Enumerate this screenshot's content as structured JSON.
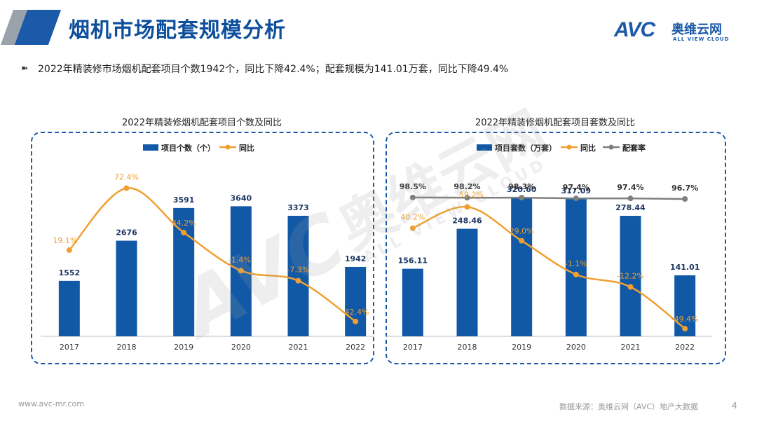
{
  "header": {
    "title": "烟机市场配套规模分析",
    "logo_avc": "AVC",
    "logo_cn": "奥维云网",
    "logo_en": "ALL VIEW CLOUD"
  },
  "summary": {
    "bullet": "➽",
    "text": "2022年精装修市场烟机配套项目个数1942个，同比下降42.4%；配套规模为141.01万套，同比下降49.4%"
  },
  "watermark": {
    "avc": "AVC",
    "cn": "奥维云网",
    "en": "ALL VIEW CLOUD"
  },
  "footer": {
    "site": "www.avc-mr.com",
    "source": "数据来源：奥维云网（AVC）地产大数据",
    "page": "4"
  },
  "colors": {
    "bar": "#1158a7",
    "yoy_line": "#f0a030",
    "rate_line": "#7f7f7f",
    "title": "#0d4f9c"
  },
  "chart_data": [
    {
      "type": "bar",
      "title": "2022年精装修烟机配套项目个数及同比",
      "categories": [
        "2017",
        "2018",
        "2019",
        "2020",
        "2021",
        "2022"
      ],
      "series": [
        {
          "name": "项目个数（个）",
          "type": "bar",
          "values": [
            1552,
            2676,
            3591,
            3640,
            3373,
            1942
          ],
          "labels": [
            "1552",
            "2676",
            "3591",
            "3640",
            "3373",
            "1942"
          ]
        },
        {
          "name": "同比",
          "type": "line",
          "values": [
            19.1,
            72.4,
            34.2,
            1.4,
            -7.3,
            -42.4
          ],
          "labels": [
            "19.1%",
            "72.4%",
            "34.2%",
            "1.4%",
            "-7.3%",
            "-42.4%"
          ]
        }
      ],
      "legend": [
        "项目个数（个）",
        "同比"
      ],
      "bar_ylim": [
        0,
        4000
      ],
      "line_ylim": [
        -60,
        80
      ]
    },
    {
      "type": "bar",
      "title": "2022年精装修烟机配套项目套数及同比",
      "categories": [
        "2017",
        "2018",
        "2019",
        "2020",
        "2021",
        "2022"
      ],
      "series": [
        {
          "name": "项目套数（万套）",
          "type": "bar",
          "values": [
            156.11,
            248.46,
            320.6,
            317.09,
            278.44,
            141.01
          ],
          "labels": [
            "156.11",
            "248.46",
            "320.60",
            "317.09",
            "278.44",
            "141.01"
          ]
        },
        {
          "name": "同比",
          "type": "line",
          "values": [
            40.2,
            59.2,
            29.0,
            -1.1,
            -12.2,
            -49.4
          ],
          "labels": [
            "40.2%",
            "59.2%",
            "29.0%",
            "-1.1%",
            "-12.2%",
            "-49.4%"
          ]
        },
        {
          "name": "配套率",
          "type": "line",
          "values": [
            98.5,
            98.2,
            98.3,
            97.4,
            97.4,
            96.7
          ],
          "labels": [
            "98.5%",
            "98.2%",
            "98.3%",
            "97.4%",
            "97.4%",
            "96.7%"
          ]
        }
      ],
      "legend": [
        "项目套数（万套）",
        "同比",
        "配套率"
      ],
      "bar_ylim": [
        0,
        340
      ],
      "line_ylim": [
        -60,
        80
      ],
      "rate_ylim": [
        0,
        120
      ]
    }
  ]
}
